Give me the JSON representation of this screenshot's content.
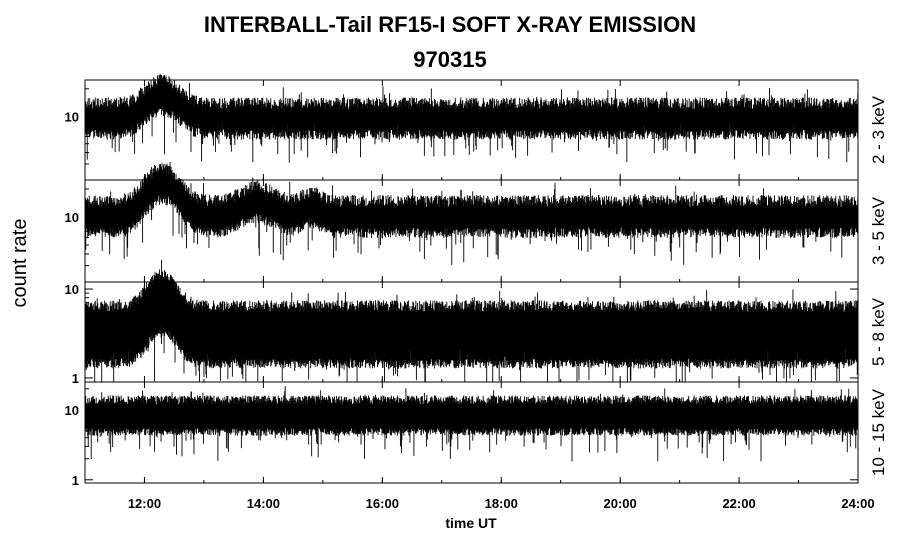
{
  "chart_data": {
    "type": "line",
    "title": "INTERBALL-Tail RF15-I SOFT X-RAY EMISSION",
    "subtitle": "970315",
    "xlabel": "time UT",
    "ylabel": "count rate",
    "x_range_hours": [
      11,
      24
    ],
    "x_ticks": [
      "12:00",
      "14:00",
      "16:00",
      "18:00",
      "20:00",
      "22:00",
      "24:00"
    ],
    "x_tick_hours": [
      12,
      14,
      16,
      18,
      20,
      22,
      24
    ],
    "y_scale": "log",
    "grid": false,
    "panels": [
      {
        "name": "2 - 3 keV",
        "ylim": [
          2,
          25
        ],
        "y_ticks": [
          "10"
        ],
        "y_tick_values": [
          10
        ],
        "baseline": 10,
        "noise_low": 6.5,
        "noise_high": 14,
        "peaks": [
          {
            "time": 12.3,
            "value": 18,
            "width": 0.35
          }
        ],
        "min_dips": 4
      },
      {
        "name": "3 - 5 keV",
        "ylim": [
          2,
          25
        ],
        "y_ticks": [
          "10"
        ],
        "y_tick_values": [
          10
        ],
        "baseline": 11,
        "noise_low": 7,
        "noise_high": 15,
        "peaks": [
          {
            "time": 12.3,
            "value": 25,
            "width": 0.35
          },
          {
            "time": 13.9,
            "value": 16,
            "width": 0.35
          },
          {
            "time": 14.8,
            "value": 14,
            "width": 0.2
          }
        ],
        "min_dips": 4
      },
      {
        "name": "5 - 8 keV",
        "ylim": [
          0.9,
          12
        ],
        "y_ticks": [
          "10",
          "1"
        ],
        "y_tick_values": [
          10,
          1
        ],
        "baseline": 3.5,
        "noise_low": 1.5,
        "noise_high": 6.5,
        "peaks": [
          {
            "time": 12.3,
            "value": 8,
            "width": 0.3
          }
        ],
        "min_dips": 1
      },
      {
        "name": "10 - 15 keV",
        "ylim": [
          0.9,
          25
        ],
        "y_ticks": [
          "10",
          "1"
        ],
        "y_tick_values": [
          10,
          1
        ],
        "baseline": 9,
        "noise_low": 5,
        "noise_high": 14,
        "peaks": [],
        "min_dips": 2
      }
    ]
  }
}
